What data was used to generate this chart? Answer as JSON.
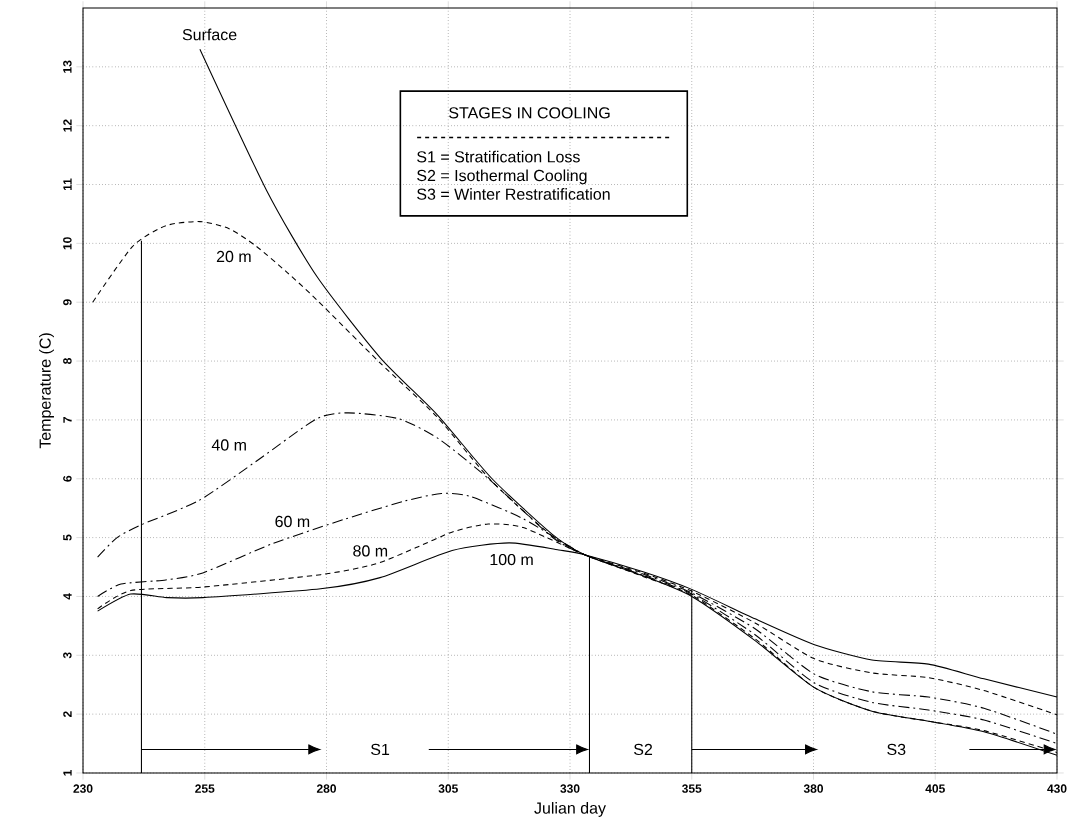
{
  "chart_data": {
    "type": "line",
    "xlabel": "Julian day",
    "ylabel": "Temperature (C)",
    "xlim": [
      230,
      430
    ],
    "ylim": [
      1,
      14
    ],
    "xticks": [
      230,
      255,
      280,
      305,
      330,
      355,
      380,
      405,
      430
    ],
    "yticks": [
      1,
      2,
      3,
      4,
      5,
      6,
      7,
      8,
      9,
      10,
      11,
      12,
      13
    ],
    "grid": true,
    "series": [
      {
        "name": "Surface",
        "color": "#000000",
        "line_style": "solid",
        "x": [
          254,
          267.7,
          278,
          291,
          302.7,
          314,
          326.3,
          333,
          345,
          355,
          368,
          380.2,
          392,
          403.6,
          415,
          430
        ],
        "values": [
          13.3,
          10.9,
          9.44,
          8.06,
          7.09,
          6.0,
          5.06,
          4.71,
          4.35,
          4.0,
          3.25,
          2.45,
          2.05,
          1.88,
          1.7,
          1.3
        ]
      },
      {
        "name": "20 m",
        "color": "#000000",
        "line_style": "dashed",
        "x": [
          232,
          240.2,
          247,
          254,
          260,
          265.6,
          272,
          278,
          291,
          302.7,
          314,
          326.3,
          333,
          345,
          355,
          368,
          380.2,
          392,
          403.6,
          415,
          430
        ],
        "values": [
          9.0,
          9.95,
          10.3,
          10.37,
          10.25,
          9.95,
          9.5,
          9.04,
          7.97,
          7.05,
          5.95,
          5.03,
          4.71,
          4.34,
          4.02,
          3.28,
          2.45,
          2.05,
          1.88,
          1.72,
          1.35
        ]
      },
      {
        "name": "40 m",
        "color": "#000000",
        "line_style": "dashdot",
        "x": [
          233,
          237,
          242,
          253.8,
          266.3,
          278,
          284.5,
          294.8,
          303,
          313,
          326.3,
          333,
          345,
          355,
          368,
          380.2,
          392,
          403.6,
          415,
          430
        ],
        "values": [
          4.67,
          5.0,
          5.22,
          5.63,
          6.34,
          7.02,
          7.12,
          7.02,
          6.68,
          6.02,
          5.01,
          4.71,
          4.36,
          4.04,
          3.35,
          2.53,
          2.2,
          2.07,
          1.9,
          1.5
        ]
      },
      {
        "name": "60 m",
        "color": "#000000",
        "line_style": "dashdot",
        "x": [
          233,
          237.8,
          247,
          254.6,
          269,
          284,
          296,
          303.6,
          309.5,
          320.4,
          333,
          345,
          355,
          368,
          380.2,
          392,
          403.6,
          415,
          430
        ],
        "values": [
          4.0,
          4.21,
          4.28,
          4.4,
          4.9,
          5.32,
          5.62,
          5.75,
          5.7,
          5.32,
          4.71,
          4.38,
          4.06,
          3.45,
          2.68,
          2.38,
          2.29,
          2.1,
          1.66
        ]
      },
      {
        "name": "80 m",
        "color": "#000000",
        "line_style": "dashed",
        "x": [
          233,
          239.8,
          254.6,
          278.8,
          290,
          298.4,
          306,
          313.2,
          320.4,
          333,
          345,
          355,
          368,
          380.2,
          392,
          403.6,
          415,
          430
        ],
        "values": [
          3.79,
          4.1,
          4.16,
          4.37,
          4.55,
          4.83,
          5.1,
          5.23,
          5.17,
          4.71,
          4.4,
          4.09,
          3.55,
          2.94,
          2.7,
          2.62,
          2.4,
          1.99
        ]
      },
      {
        "name": "100 m",
        "color": "#000000",
        "line_style": "solid",
        "x": [
          233,
          239.8,
          247.2,
          254.6,
          278.8,
          291,
          305.8,
          317.5,
          327.7,
          333,
          345,
          355,
          368,
          380.2,
          392,
          403.6,
          415,
          430
        ],
        "values": [
          3.75,
          4.04,
          3.98,
          3.98,
          4.13,
          4.32,
          4.78,
          4.91,
          4.79,
          4.71,
          4.42,
          4.12,
          3.62,
          3.18,
          2.92,
          2.85,
          2.6,
          2.29
        ]
      }
    ],
    "ref_lines": [
      {
        "axis": "x",
        "value": 242
      },
      {
        "axis": "x",
        "value": 334
      },
      {
        "axis": "x",
        "value": 355
      }
    ],
    "annotations": [
      "STAGES IN COOLING",
      "S1 = Stratification Loss",
      "S2 = Isothermal Cooling",
      "S3 = Winter Restratification",
      "S1",
      "S2",
      "S3"
    ]
  }
}
